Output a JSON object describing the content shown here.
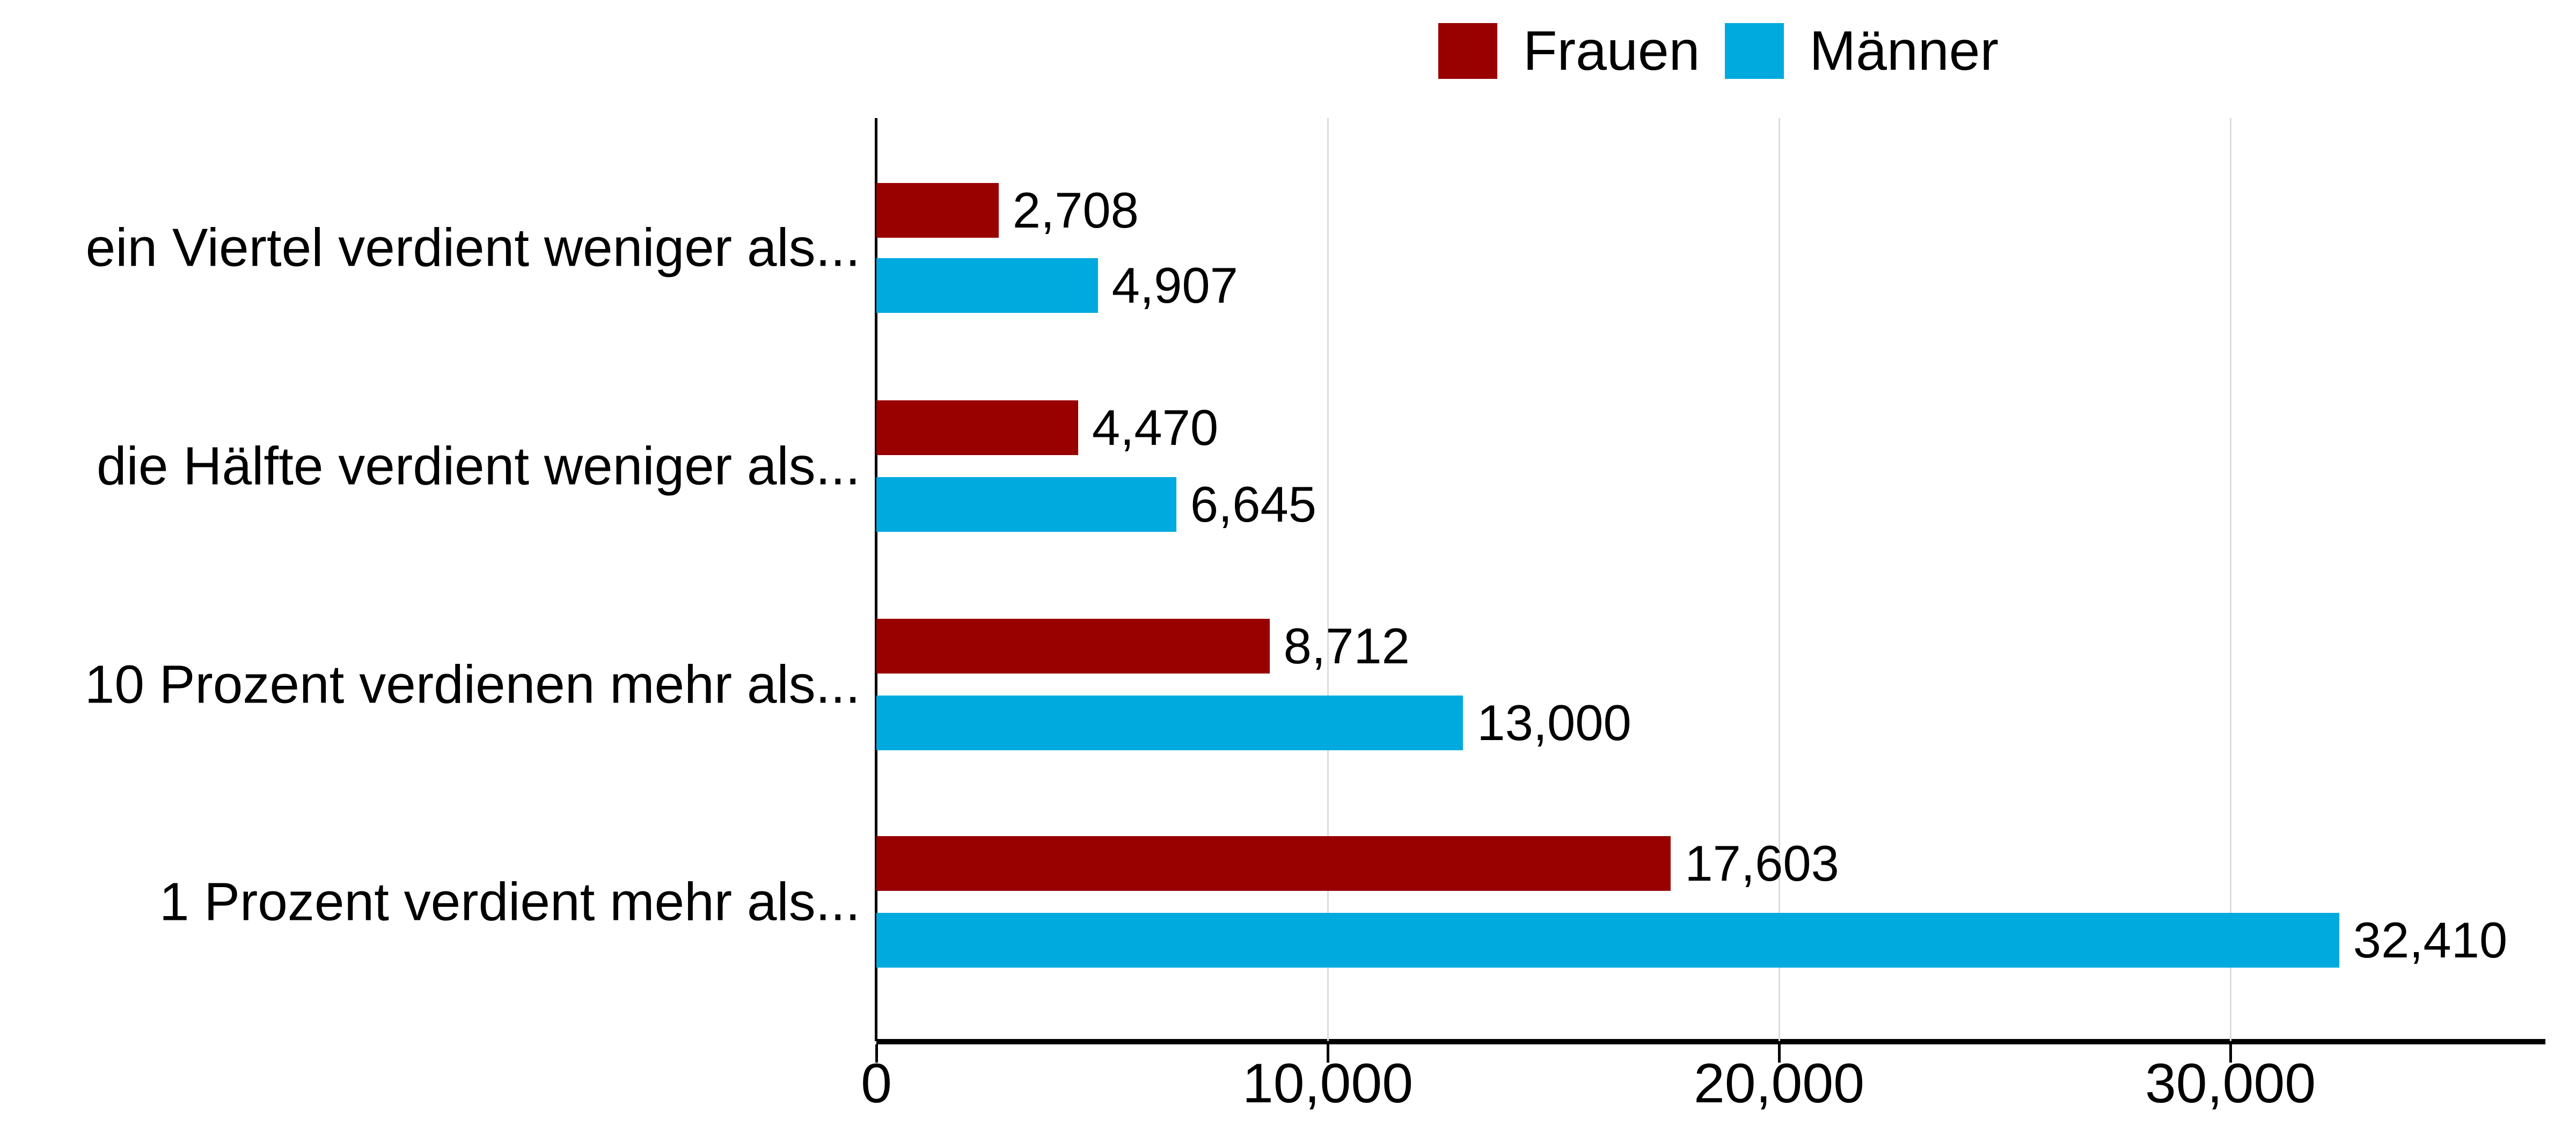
{
  "chart_data": {
    "type": "bar",
    "orientation": "horizontal",
    "title": "",
    "xlabel": "",
    "ylabel": "",
    "categories": [
      "ein Viertel verdient weniger als...",
      "die Hälfte verdient weniger als...",
      "10 Prozent verdienen mehr als...",
      "1 Prozent verdient mehr als..."
    ],
    "series": [
      {
        "name": "Frauen",
        "color": "#990000",
        "values": [
          2708,
          4470,
          8712,
          17603
        ],
        "labels": [
          "2,708",
          "4,470",
          "8,712",
          "17,603"
        ]
      },
      {
        "name": "Männer",
        "color": "#00aadf",
        "values": [
          4907,
          6645,
          13000,
          32410
        ],
        "labels": [
          "4,907",
          "6,645",
          "13,000",
          "32,410"
        ]
      }
    ],
    "xlim": [
      0,
      37000
    ],
    "xticks": [
      0,
      10000,
      20000,
      30000
    ],
    "xtick_labels": [
      "0",
      "10,000",
      "20,000",
      "30,000"
    ],
    "grid": true,
    "legend_position": "top"
  },
  "legend": {
    "items": [
      {
        "label": "Frauen",
        "color": "#990000"
      },
      {
        "label": "Männer",
        "color": "#00aadf"
      }
    ]
  }
}
